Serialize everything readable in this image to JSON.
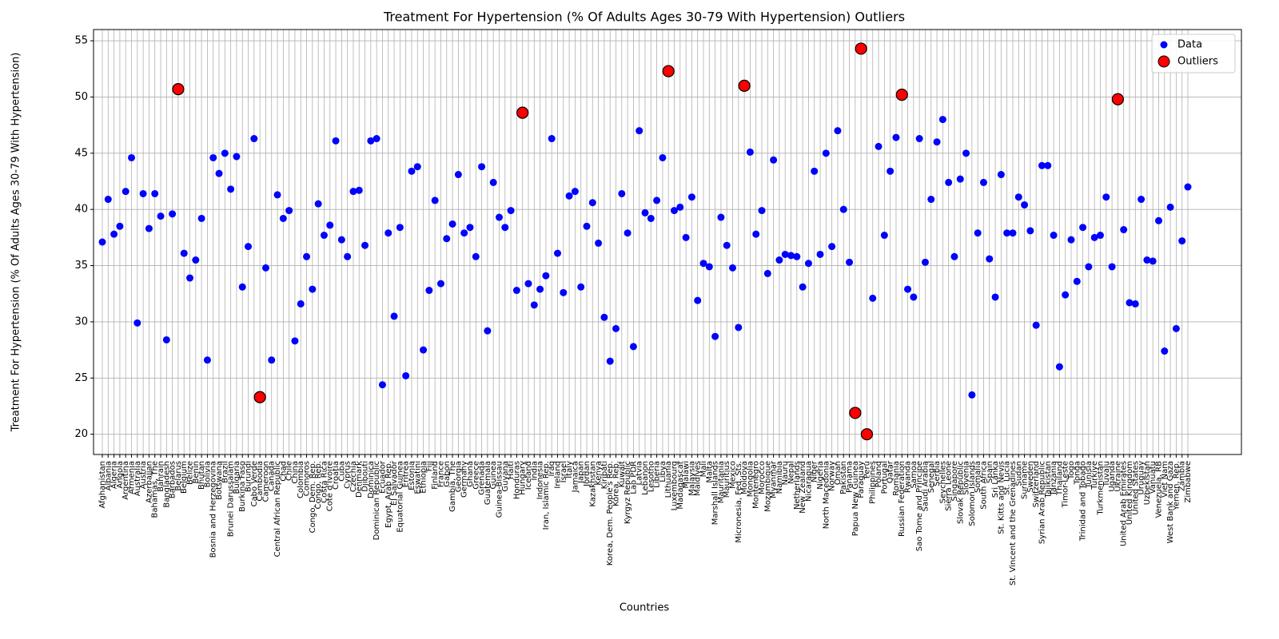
{
  "chart_data": {
    "type": "scatter",
    "title": "Treatment For Hypertension (% Of Adults Ages 30-79 With Hypertension) Outliers",
    "x_label": "Countries",
    "y_label": "Treatment For Hypertension (% Of Adults Ages 30-79 With Hypertension)",
    "categories": [
      "Afghanistan",
      "Albania",
      "Algeria",
      "Angola",
      "Argentina",
      "Armenia",
      "Australia",
      "Austria",
      "Azerbaijan",
      "Bahamas, The",
      "Bahrain",
      "Bangladesh",
      "Barbados",
      "Belarus",
      "Belgium",
      "Belize",
      "Benin",
      "Bhutan",
      "Bolivia",
      "Bosnia and Herzegovina",
      "Botswana",
      "Brazil",
      "Brunei Darussalam",
      "Bulgaria",
      "Burkina Faso",
      "Burundi",
      "Cabo Verde",
      "Cambodia",
      "Cameroon",
      "Canada",
      "Central African Republic",
      "Chad",
      "Chile",
      "China",
      "Colombia",
      "Comoros",
      "Congo, Dem. Rep.",
      "Congo, Rep.",
      "Costa Rica",
      "Cote d'Ivoire",
      "Croatia",
      "Cuba",
      "Cyprus",
      "Czechia",
      "Denmark",
      "Djibouti",
      "Dominica",
      "Dominican Republic",
      "Ecuador",
      "Egypt, Arab Rep.",
      "El Salvador",
      "Equatorial Guinea",
      "Eritrea",
      "Estonia",
      "Eswatini",
      "Ethiopia",
      "Fiji",
      "Finland",
      "France",
      "Gabon",
      "Gambia, The",
      "Georgia",
      "Germany",
      "Ghana",
      "Greece",
      "Grenada",
      "Guatemala",
      "Guinea",
      "Guinea-Bissau",
      "Guyana",
      "Haiti",
      "Honduras",
      "Hungary",
      "Iceland",
      "India",
      "Indonesia",
      "Iran, Islamic Rep.",
      "Iraq",
      "Ireland",
      "Israel",
      "Italy",
      "Jamaica",
      "Japan",
      "Jordan",
      "Kazakhstan",
      "Kenya",
      "Kiribati",
      "Korea, Dem. People's Rep.",
      "Korea, Rep.",
      "Kuwait",
      "Kyrgyz Republic",
      "Lao PDR",
      "Latvia",
      "Lebanon",
      "Lesotho",
      "Liberia",
      "Libya",
      "Lithuania",
      "Luxembourg",
      "Madagascar",
      "Malawi",
      "Malaysia",
      "Maldives",
      "Mali",
      "Malta",
      "Marshall Islands",
      "Mauritania",
      "Mauritius",
      "Mexico",
      "Micronesia, Fed. Sts.",
      "Moldova",
      "Mongolia",
      "Montenegro",
      "Morocco",
      "Mozambique",
      "Myanmar",
      "Namibia",
      "Nauru",
      "Nepal",
      "Netherlands",
      "New Zealand",
      "Nicaragua",
      "Niger",
      "Nigeria",
      "North Macedonia",
      "Norway",
      "Oman",
      "Pakistan",
      "Panama",
      "Papua New Guinea",
      "Paraguay",
      "Peru",
      "Philippines",
      "Poland",
      "Portugal",
      "Qatar",
      "Romania",
      "Russian Federation",
      "Rwanda",
      "Samoa",
      "Sao Tome and Principe",
      "Saudi Arabia",
      "Senegal",
      "Serbia",
      "Seychelles",
      "Sierra Leone",
      "Singapore",
      "Slovak Republic",
      "Slovenia",
      "Solomon Islands",
      "Somalia",
      "South Africa",
      "Spain",
      "Sri Lanka",
      "St. Kitts and Nevis",
      "St. Lucia",
      "St. Vincent and the Grenadines",
      "Sudan",
      "Suriname",
      "Sweden",
      "Switzerland",
      "Syrian Arab Republic",
      "Tajikistan",
      "Tanzania",
      "Thailand",
      "Timor-Leste",
      "Togo",
      "Tonga",
      "Trinidad and Tobago",
      "Tunisia",
      "Turkiye",
      "Turkmenistan",
      "Tuvalu",
      "Uganda",
      "Ukraine",
      "United Arab Emirates",
      "United Kingdom",
      "United States",
      "Uruguay",
      "Uzbekistan",
      "Vanuatu",
      "Venezuela, RB",
      "Viet Nam",
      "West Bank and Gaza",
      "Yemen, Rep.",
      "Zambia",
      "Zimbabwe"
    ],
    "series": [
      {
        "name": "Data",
        "color": "#0000ff",
        "values": [
          37.1,
          40.9,
          37.8,
          38.5,
          41.6,
          44.6,
          29.9,
          41.4,
          38.3,
          41.4,
          39.4,
          28.4,
          39.6,
          50.7,
          36.1,
          33.9,
          35.5,
          39.2,
          26.6,
          44.6,
          43.2,
          45.0,
          41.8,
          44.7,
          33.1,
          36.7,
          46.3,
          23.3,
          34.8,
          26.6,
          41.3,
          39.2,
          39.9,
          28.3,
          31.6,
          35.8,
          32.9,
          40.5,
          37.7,
          38.6,
          46.1,
          37.3,
          35.8,
          41.6,
          41.7,
          36.8,
          46.1,
          46.3,
          24.4,
          37.9,
          30.5,
          38.4,
          25.2,
          43.4,
          43.8,
          27.5,
          32.8,
          40.8,
          33.4,
          37.4,
          38.7,
          43.1,
          37.9,
          38.4,
          35.8,
          43.8,
          29.2,
          42.4,
          39.3,
          38.4,
          39.9,
          32.8,
          48.6,
          33.4,
          31.5,
          32.9,
          34.1,
          46.3,
          36.1,
          32.6,
          41.2,
          41.6,
          33.1,
          38.5,
          40.6,
          37.0,
          30.4,
          26.5,
          29.4,
          41.4,
          37.9,
          27.8,
          47.0,
          39.7,
          39.2,
          40.8,
          44.6,
          52.3,
          39.9,
          40.2,
          37.5,
          41.1,
          31.9,
          35.2,
          34.9,
          28.7,
          39.3,
          36.8,
          34.8,
          29.5,
          51.0,
          45.1,
          37.8,
          39.9,
          34.3,
          44.4,
          35.5,
          36.0,
          35.9,
          35.8,
          33.1,
          35.2,
          43.4,
          36.0,
          45.0,
          36.7,
          47.0,
          40.0,
          35.3,
          21.9,
          54.3,
          20.0,
          32.1,
          45.6,
          37.7,
          43.4,
          46.4,
          50.2,
          32.9,
          32.2,
          46.3,
          35.3,
          40.9,
          46.0,
          48.0,
          42.4,
          35.8,
          42.7,
          45.0,
          23.5,
          37.9,
          42.4,
          35.6,
          32.2,
          43.1,
          37.9,
          37.9,
          41.1,
          40.4,
          38.1,
          29.7,
          43.9,
          43.9,
          37.7,
          26.0,
          32.4,
          37.3,
          33.6,
          38.4,
          34.9,
          37.5,
          37.7,
          41.1,
          34.9,
          49.8,
          38.2,
          31.7,
          31.6,
          40.9,
          35.5,
          35.4,
          39.0,
          27.4,
          40.2,
          29.4,
          37.2,
          42.0
        ]
      },
      {
        "name": "Outliers",
        "color": "#ff0000",
        "values": [
          null,
          null,
          null,
          null,
          null,
          null,
          null,
          null,
          null,
          null,
          null,
          null,
          null,
          50.7,
          null,
          null,
          null,
          null,
          null,
          null,
          null,
          null,
          null,
          null,
          null,
          null,
          null,
          23.3,
          null,
          null,
          null,
          null,
          null,
          null,
          null,
          null,
          null,
          null,
          null,
          null,
          null,
          null,
          null,
          null,
          null,
          null,
          null,
          null,
          null,
          null,
          null,
          null,
          null,
          null,
          null,
          null,
          null,
          null,
          null,
          null,
          null,
          null,
          null,
          null,
          null,
          null,
          null,
          null,
          null,
          null,
          null,
          null,
          48.6,
          null,
          null,
          null,
          null,
          null,
          null,
          null,
          null,
          null,
          null,
          null,
          null,
          null,
          null,
          null,
          null,
          null,
          null,
          null,
          null,
          null,
          null,
          null,
          null,
          52.3,
          null,
          null,
          null,
          null,
          null,
          null,
          null,
          null,
          null,
          null,
          null,
          null,
          51.0,
          null,
          null,
          null,
          null,
          null,
          null,
          null,
          null,
          null,
          null,
          null,
          null,
          null,
          null,
          null,
          null,
          null,
          null,
          21.9,
          54.3,
          20.0,
          null,
          null,
          null,
          null,
          null,
          50.2,
          null,
          null,
          null,
          null,
          null,
          null,
          null,
          null,
          null,
          null,
          null,
          null,
          null,
          null,
          null,
          null,
          null,
          null,
          null,
          null,
          null,
          null,
          null,
          null,
          null,
          null,
          null,
          null,
          null,
          null,
          null,
          null,
          null,
          null,
          null,
          null,
          49.8,
          null,
          null,
          null,
          null,
          null,
          null,
          null,
          null,
          null,
          null,
          null,
          null
        ]
      }
    ],
    "ylim": [
      18.2,
      56.0
    ],
    "yticks": [
      20,
      25,
      30,
      35,
      40,
      45,
      50,
      55
    ],
    "grid": true,
    "legend": "upper right"
  }
}
